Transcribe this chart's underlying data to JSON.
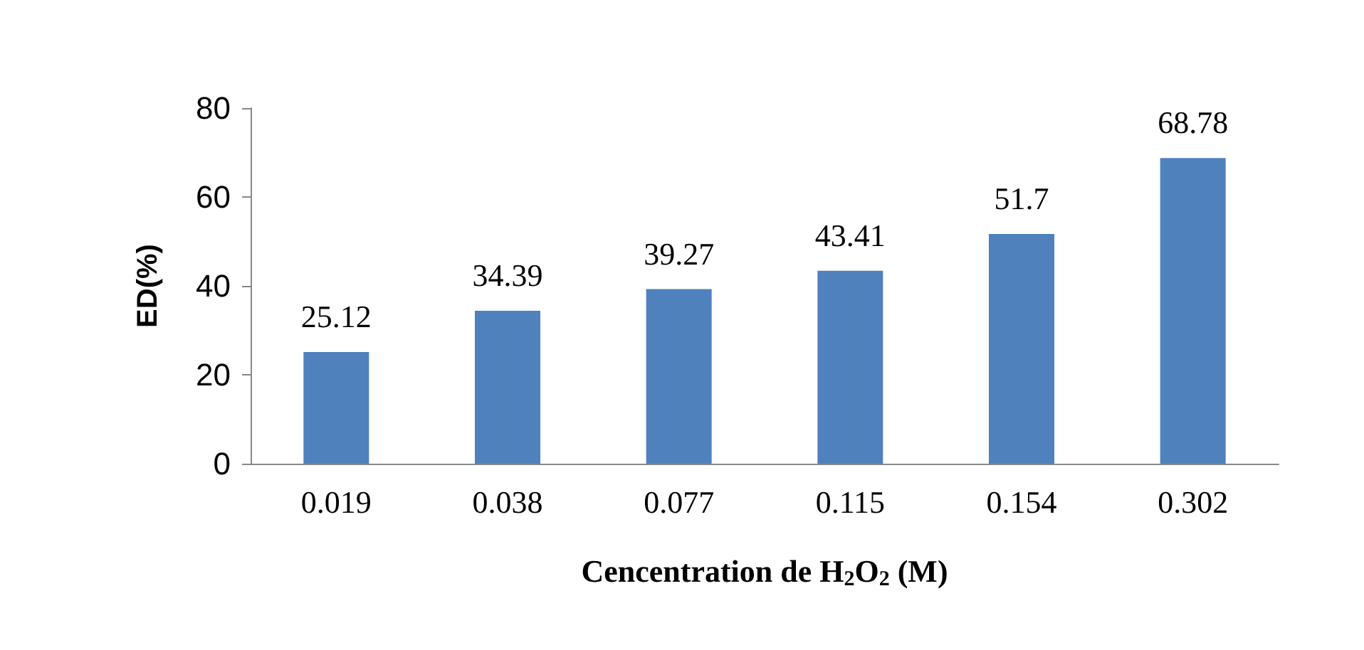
{
  "chart_data": {
    "type": "bar",
    "xlabel": "Cencentration de H$_{2}$O$_{2}$ (M)",
    "ylabel": "ED(%)",
    "categories": [
      "0.019",
      "0.038",
      "0.077",
      "0.115",
      "0.154",
      "0.302"
    ],
    "values": [
      25.12,
      34.39,
      39.27,
      43.41,
      51.7,
      68.78
    ],
    "color": "#4f81bd",
    "ylim": [
      0,
      80
    ],
    "yticks": [
      0,
      20,
      40,
      60,
      80
    ],
    "grid": false,
    "data_labels": true
  }
}
